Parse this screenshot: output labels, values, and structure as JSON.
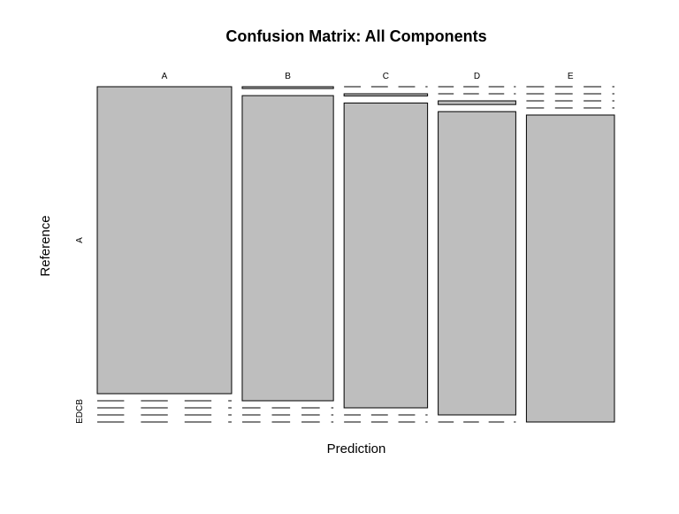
{
  "chart_data": {
    "type": "mosaic",
    "title": "Confusion Matrix: All Components",
    "xlabel": "Prediction",
    "ylabel": "Reference",
    "x_categories": [
      "A",
      "B",
      "C",
      "D",
      "E"
    ],
    "y_categories_top_to_bottom": [
      "A",
      "B",
      "C",
      "D",
      "E"
    ],
    "y_tick_labels": [
      "A",
      "B",
      "C",
      "D",
      "E"
    ],
    "column_shares": [
      0.296,
      0.201,
      0.184,
      0.171,
      0.194
    ],
    "cell_shares": [
      [
        1.0,
        0.0,
        0.0,
        0.0,
        0.0
      ],
      [
        0.006,
        0.994,
        0.0,
        0.0,
        0.0
      ],
      [
        0.0,
        0.007,
        0.993,
        0.0,
        0.0
      ],
      [
        0.0,
        0.0,
        0.012,
        0.988,
        0.0
      ],
      [
        0.0,
        0.0,
        0.0,
        0.0,
        1.0
      ]
    ]
  }
}
